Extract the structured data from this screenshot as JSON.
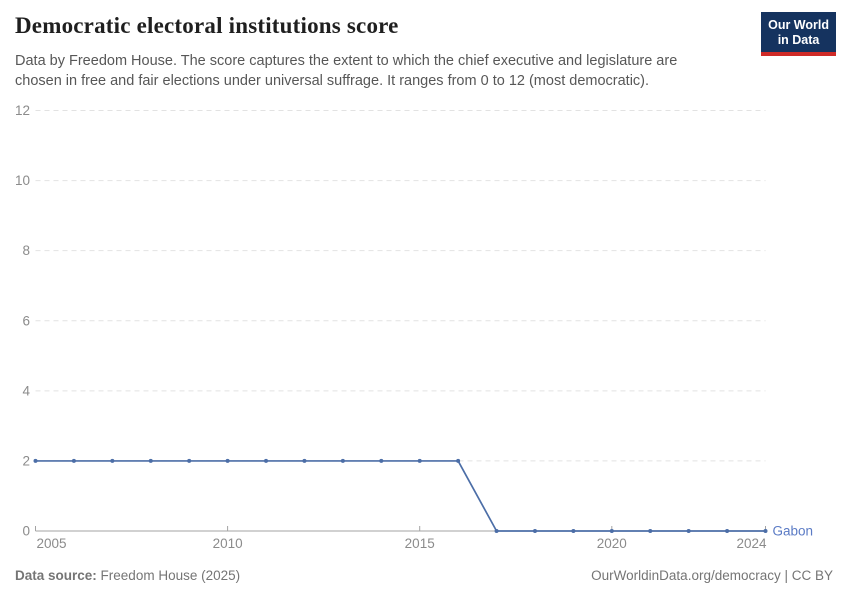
{
  "header": {
    "title": "Democratic electoral institutions score",
    "subtitle": "Data by Freedom House. The score captures the extent to which the chief executive and legislature are chosen in free and fair elections under universal suffrage. It ranges from 0 to 12 (most democratic).",
    "logo": {
      "line1": "Our World",
      "line2": "in Data"
    }
  },
  "chart_data": {
    "type": "line",
    "title": "Democratic electoral institutions score",
    "xlabel": "",
    "ylabel": "",
    "xlim": [
      2005,
      2024
    ],
    "ylim": [
      0,
      12
    ],
    "x_ticks": [
      2005,
      2010,
      2015,
      2020,
      2024
    ],
    "y_ticks": [
      0,
      2,
      4,
      6,
      8,
      10,
      12
    ],
    "grid": "horizontal-dashed",
    "legend_position": "end-of-line-label",
    "series": [
      {
        "name": "Gabon",
        "x": [
          2005,
          2006,
          2007,
          2008,
          2009,
          2010,
          2011,
          2012,
          2013,
          2014,
          2015,
          2016,
          2017,
          2018,
          2019,
          2020,
          2021,
          2022,
          2023,
          2024
        ],
        "values": [
          2,
          2,
          2,
          2,
          2,
          2,
          2,
          2,
          2,
          2,
          2,
          2,
          0,
          0,
          0,
          0,
          0,
          0,
          0,
          0
        ]
      }
    ]
  },
  "colors": {
    "line": "#4c6ea7",
    "entity_label": "#5b7bc5",
    "grid": "#e2e2e2",
    "axis": "#a3a3a3",
    "tick_label": "#8b8b8b",
    "logo_bg": "#15335f",
    "logo_red": "#cf2a27"
  },
  "footer": {
    "source_label": "Data source:",
    "source_value": "Freedom House (2025)",
    "link": "OurWorldinData.org/democracy | CC BY"
  }
}
